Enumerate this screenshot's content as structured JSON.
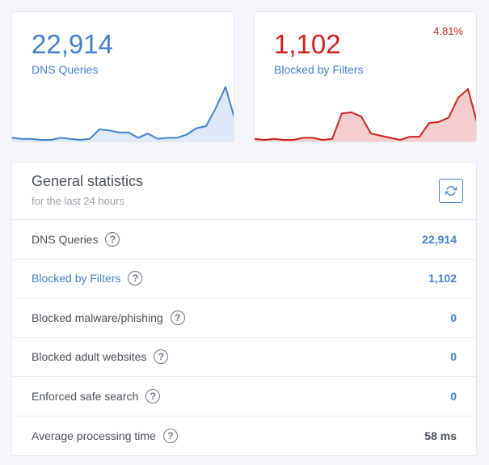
{
  "summary": {
    "queries": {
      "value": "22,914",
      "label": "DNS Queries",
      "color": "#467fcf"
    },
    "blocked": {
      "value": "1,102",
      "label": "Blocked by Filters",
      "percent": "4.81%",
      "color": "#cd201f"
    }
  },
  "general": {
    "title": "General statistics",
    "subtitle": "for the last 24 hours",
    "rows": [
      {
        "label": "DNS Queries",
        "value": "22,914"
      },
      {
        "label": "Blocked by Filters",
        "value": "1,102"
      },
      {
        "label": "Blocked malware/phishing",
        "value": "0"
      },
      {
        "label": "Blocked adult websites",
        "value": "0"
      },
      {
        "label": "Enforced safe search",
        "value": "0"
      },
      {
        "label": "Average processing time",
        "value": "58 ms"
      }
    ],
    "help_glyph": "?"
  },
  "chart_data": [
    {
      "type": "area",
      "series": [
        {
          "values": [
            2,
            1,
            1,
            0,
            0,
            2,
            1,
            0,
            1,
            10,
            9,
            7,
            7,
            2,
            6,
            1,
            2,
            2,
            5,
            11,
            13,
            30,
            50,
            18
          ]
        }
      ],
      "ylim": [
        0,
        58
      ]
    },
    {
      "type": "area",
      "series": [
        {
          "values": [
            1,
            0,
            1,
            0,
            0,
            2,
            2,
            0,
            1,
            25,
            26,
            22,
            6,
            4,
            2,
            0,
            3,
            3,
            16,
            17,
            21,
            40,
            48,
            14
          ]
        }
      ],
      "ylim": [
        0,
        58
      ]
    }
  ]
}
